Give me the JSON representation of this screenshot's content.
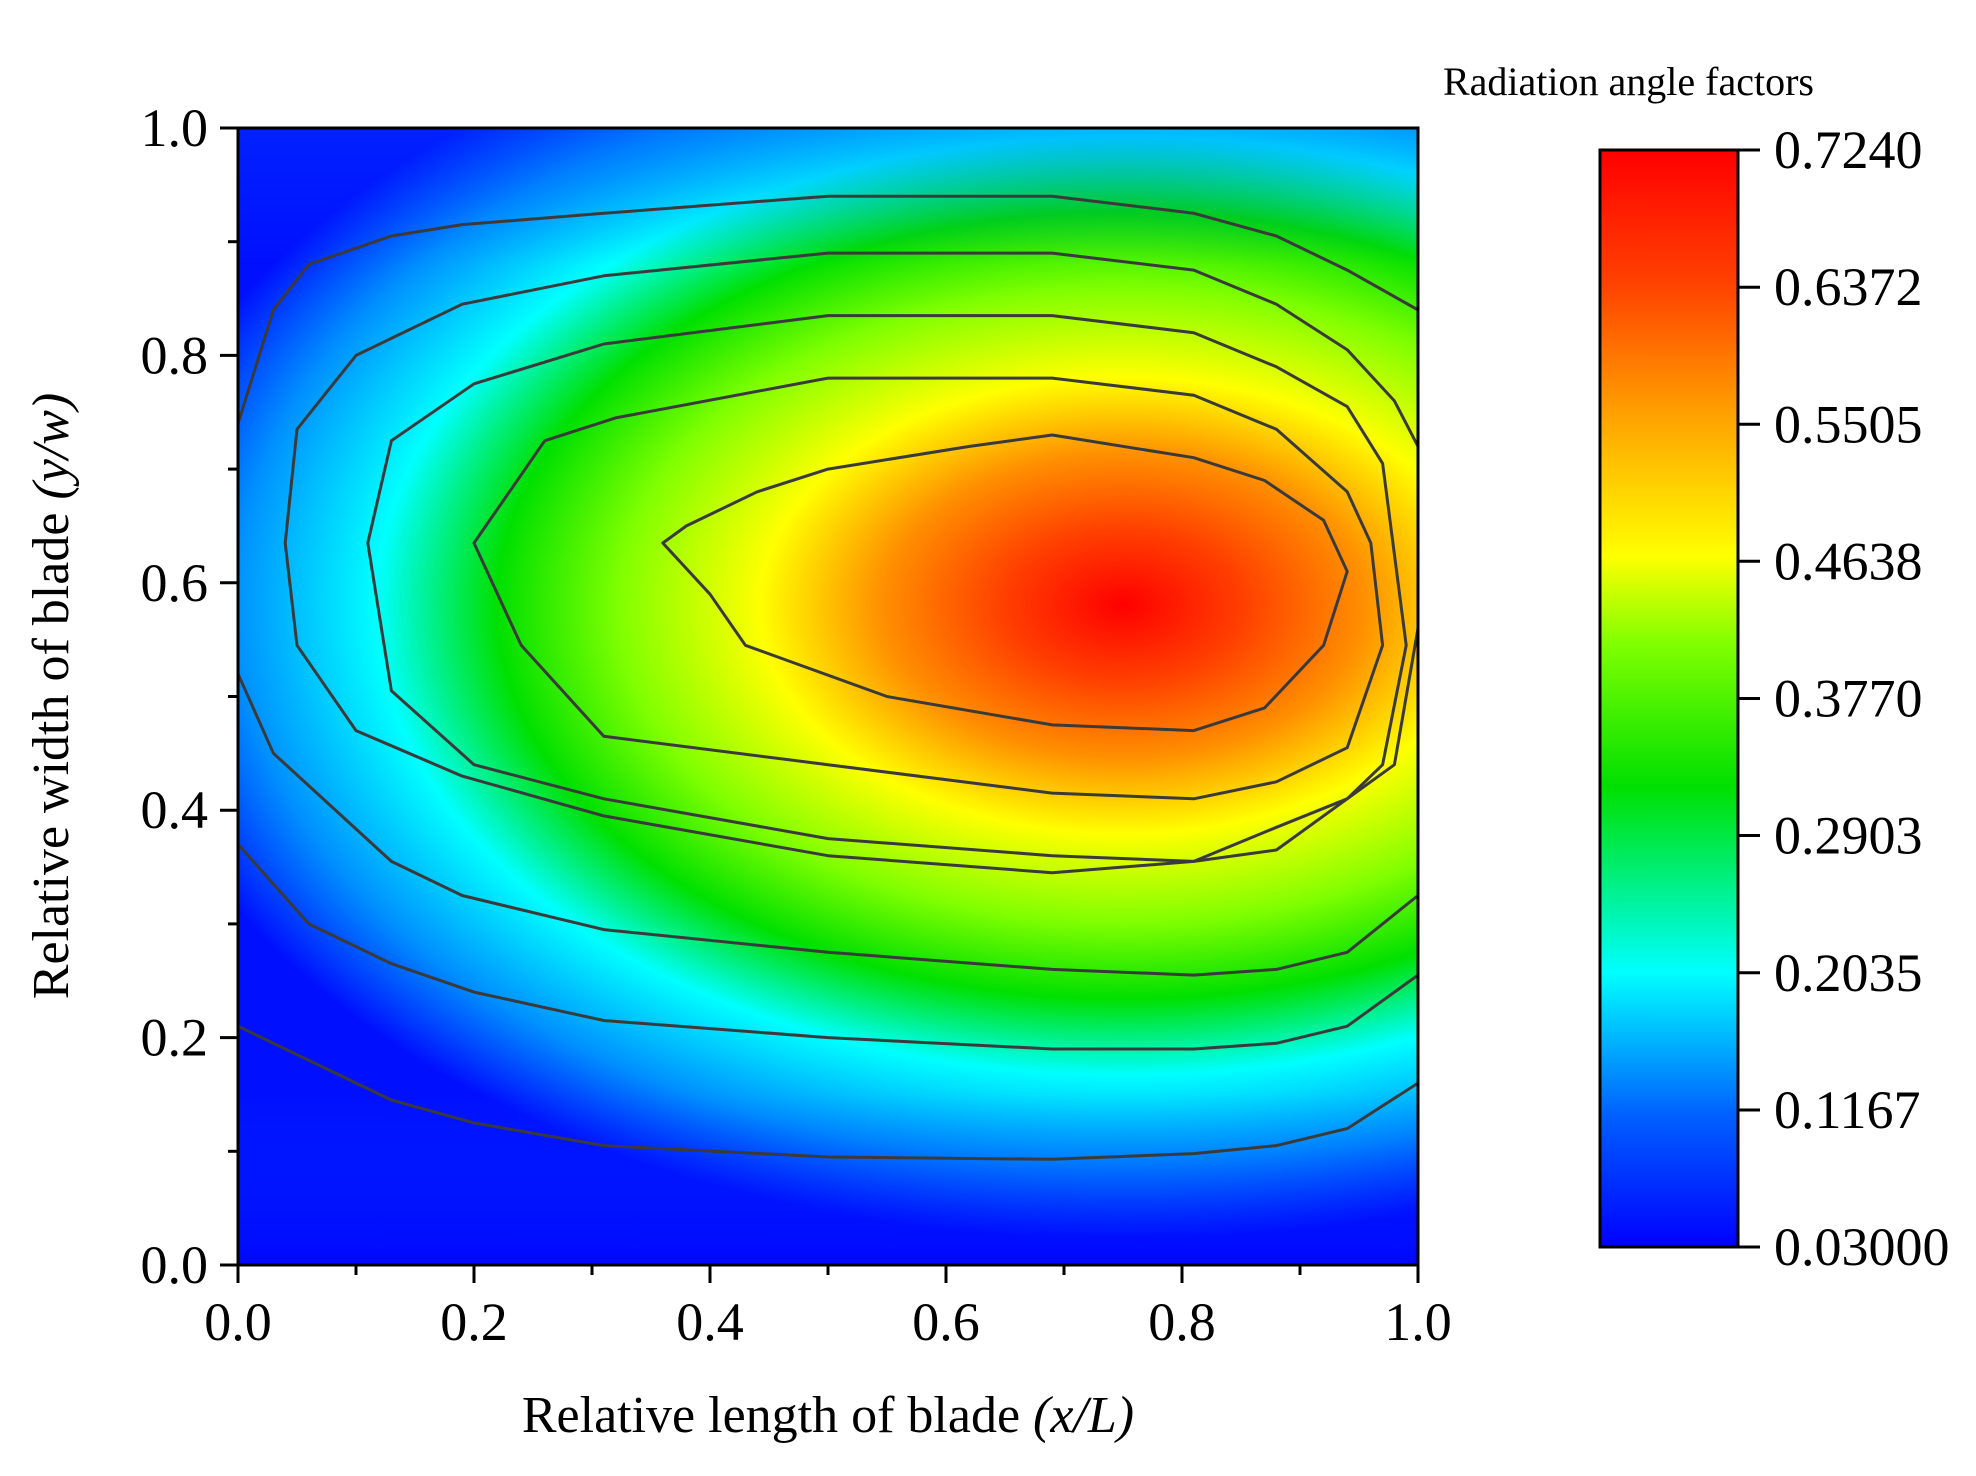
{
  "chart_data": {
    "type": "heatmap",
    "subtype": "filled-contour",
    "title": "Radiation angle factors",
    "xlabel": "Relative length of blade ",
    "xlabel_var": "(x/L)",
    "ylabel": "Relative width of blade ",
    "ylabel_var": "(y/w)",
    "xlim": [
      0.0,
      1.0
    ],
    "ylim": [
      0.0,
      1.0
    ],
    "x_ticks": [
      "0.0",
      "0.2",
      "0.4",
      "0.6",
      "0.8",
      "1.0"
    ],
    "y_ticks": [
      "0.0",
      "0.2",
      "0.4",
      "0.6",
      "0.8",
      "1.0"
    ],
    "x_tick_values": [
      0.0,
      0.2,
      0.4,
      0.6,
      0.8,
      1.0
    ],
    "y_tick_values": [
      0.0,
      0.2,
      0.4,
      0.6,
      0.8,
      1.0
    ],
    "colorbar": {
      "min": 0.03,
      "max": 0.724,
      "tick_values": [
        0.03,
        0.1167,
        0.2035,
        0.2903,
        0.377,
        0.4638,
        0.5505,
        0.6372,
        0.724
      ],
      "tick_labels": [
        "0.03000",
        "0.1167",
        "0.2035",
        "0.2903",
        "0.3770",
        "0.4638",
        "0.5505",
        "0.6372",
        "0.7240"
      ],
      "colormap": [
        "#0000ff",
        "#0080ff",
        "#00ffff",
        "#00ff00",
        "#ffff00",
        "#ff8000",
        "#ff0000"
      ]
    },
    "field": {
      "peak_location": [
        0.75,
        0.58
      ],
      "peak_value": 0.724,
      "edge_value": 0.03
    },
    "contour_lines": [
      {
        "level": "outer-1",
        "points": [
          [
            0.0,
            0.21
          ],
          [
            0.06,
            0.18
          ],
          [
            0.13,
            0.145
          ],
          [
            0.2,
            0.125
          ],
          [
            0.31,
            0.105
          ],
          [
            0.5,
            0.095
          ],
          [
            0.69,
            0.093
          ],
          [
            0.81,
            0.098
          ],
          [
            0.88,
            0.105
          ],
          [
            0.94,
            0.12
          ],
          [
            1.0,
            0.16
          ]
        ]
      },
      {
        "level": "outer-2",
        "points": [
          [
            0.0,
            0.37
          ],
          [
            0.06,
            0.3
          ],
          [
            0.13,
            0.265
          ],
          [
            0.2,
            0.24
          ],
          [
            0.31,
            0.215
          ],
          [
            0.5,
            0.2
          ],
          [
            0.69,
            0.19
          ],
          [
            0.81,
            0.19
          ],
          [
            0.88,
            0.195
          ],
          [
            0.94,
            0.21
          ],
          [
            1.0,
            0.255
          ]
        ]
      },
      {
        "level": "outer-3",
        "points": [
          [
            0.0,
            0.52
          ],
          [
            0.03,
            0.45
          ],
          [
            0.13,
            0.355
          ],
          [
            0.19,
            0.325
          ],
          [
            0.31,
            0.295
          ],
          [
            0.5,
            0.275
          ],
          [
            0.69,
            0.26
          ],
          [
            0.81,
            0.255
          ],
          [
            0.88,
            0.26
          ],
          [
            0.94,
            0.275
          ],
          [
            1.0,
            0.325
          ]
        ]
      },
      {
        "level": "ring-a",
        "closed": false,
        "points": [
          [
            0.0,
            0.74
          ],
          [
            0.03,
            0.84
          ],
          [
            0.06,
            0.88
          ],
          [
            0.13,
            0.905
          ],
          [
            0.19,
            0.915
          ],
          [
            0.31,
            0.925
          ],
          [
            0.5,
            0.94
          ],
          [
            0.69,
            0.94
          ],
          [
            0.81,
            0.925
          ],
          [
            0.88,
            0.905
          ],
          [
            0.94,
            0.875
          ],
          [
            1.0,
            0.84
          ]
        ]
      },
      {
        "level": "ring-b",
        "closed": true,
        "points": [
          [
            0.04,
            0.635
          ],
          [
            0.05,
            0.735
          ],
          [
            0.1,
            0.8
          ],
          [
            0.19,
            0.845
          ],
          [
            0.31,
            0.87
          ],
          [
            0.5,
            0.89
          ],
          [
            0.69,
            0.89
          ],
          [
            0.81,
            0.875
          ],
          [
            0.88,
            0.845
          ],
          [
            0.94,
            0.805
          ],
          [
            0.98,
            0.76
          ],
          [
            1.0,
            0.72
          ],
          [
            1.0,
            0.56
          ],
          [
            0.98,
            0.44
          ],
          [
            0.94,
            0.41
          ],
          [
            0.88,
            0.385
          ],
          [
            0.81,
            0.355
          ],
          [
            0.69,
            0.345
          ],
          [
            0.5,
            0.36
          ],
          [
            0.31,
            0.395
          ],
          [
            0.19,
            0.43
          ],
          [
            0.1,
            0.47
          ],
          [
            0.05,
            0.545
          ]
        ]
      },
      {
        "level": "ring-c",
        "closed": true,
        "points": [
          [
            0.11,
            0.635
          ],
          [
            0.13,
            0.725
          ],
          [
            0.2,
            0.775
          ],
          [
            0.31,
            0.81
          ],
          [
            0.5,
            0.835
          ],
          [
            0.69,
            0.835
          ],
          [
            0.81,
            0.82
          ],
          [
            0.88,
            0.79
          ],
          [
            0.94,
            0.755
          ],
          [
            0.97,
            0.705
          ],
          [
            0.99,
            0.545
          ],
          [
            0.97,
            0.44
          ],
          [
            0.94,
            0.41
          ],
          [
            0.88,
            0.365
          ],
          [
            0.81,
            0.355
          ],
          [
            0.69,
            0.36
          ],
          [
            0.5,
            0.375
          ],
          [
            0.31,
            0.41
          ],
          [
            0.2,
            0.44
          ],
          [
            0.13,
            0.505
          ]
        ]
      },
      {
        "level": "ring-d",
        "closed": true,
        "points": [
          [
            0.2,
            0.635
          ],
          [
            0.26,
            0.725
          ],
          [
            0.32,
            0.745
          ],
          [
            0.5,
            0.78
          ],
          [
            0.69,
            0.78
          ],
          [
            0.81,
            0.765
          ],
          [
            0.88,
            0.735
          ],
          [
            0.94,
            0.68
          ],
          [
            0.96,
            0.635
          ],
          [
            0.97,
            0.545
          ],
          [
            0.94,
            0.455
          ],
          [
            0.88,
            0.425
          ],
          [
            0.81,
            0.41
          ],
          [
            0.69,
            0.415
          ],
          [
            0.5,
            0.44
          ],
          [
            0.31,
            0.465
          ],
          [
            0.24,
            0.545
          ]
        ]
      },
      {
        "level": "ring-e",
        "closed": true,
        "points": [
          [
            0.36,
            0.635
          ],
          [
            0.38,
            0.65
          ],
          [
            0.44,
            0.68
          ],
          [
            0.5,
            0.7
          ],
          [
            0.62,
            0.72
          ],
          [
            0.69,
            0.73
          ],
          [
            0.81,
            0.71
          ],
          [
            0.87,
            0.69
          ],
          [
            0.92,
            0.655
          ],
          [
            0.94,
            0.61
          ],
          [
            0.92,
            0.545
          ],
          [
            0.87,
            0.49
          ],
          [
            0.81,
            0.47
          ],
          [
            0.69,
            0.475
          ],
          [
            0.55,
            0.5
          ],
          [
            0.43,
            0.545
          ],
          [
            0.4,
            0.59
          ]
        ]
      }
    ]
  }
}
